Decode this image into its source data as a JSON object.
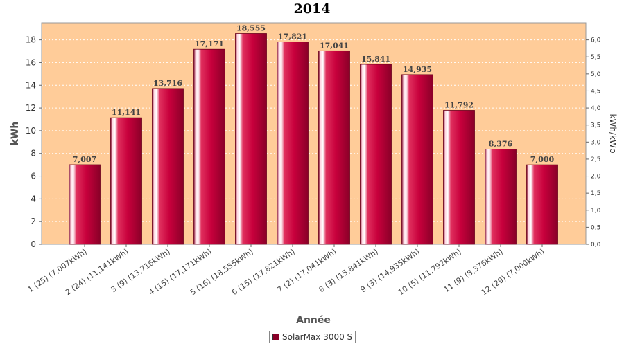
{
  "chart_data": {
    "type": "bar",
    "title": "2014",
    "xlabel": "Année",
    "ylabel": "kWh",
    "y2label": "kWh/kWp",
    "ylim": [
      0,
      19.5
    ],
    "y2lim": [
      0,
      6.5
    ],
    "yticks": [
      0,
      2,
      4,
      6,
      8,
      10,
      12,
      14,
      16,
      18
    ],
    "y2ticks": [
      "0,0",
      "0,5",
      "1,0",
      "1,5",
      "2,0",
      "2,5",
      "3,0",
      "3,5",
      "4,0",
      "4,5",
      "5,0",
      "5,5",
      "6,0"
    ],
    "grid": true,
    "legend_position": "bottom",
    "categories": [
      "1 (25)  (7,007kWh)",
      "2 (24)  (11,141kWh)",
      "3 (9)  (13,716kWh)",
      "4 (15)  (17,171kWh)",
      "5 (16)  (18,555kWh)",
      "6 (15)  (17,821kWh)",
      "7 (2)  (17,041kWh)",
      "8 (3)  (15,841kWh)",
      "9 (3)  (14,935kWh)",
      "10 (5)  (11,792kWh)",
      "11 (9)  (8,376kWh)",
      "12 (29)  (7,000kWh)"
    ],
    "series": [
      {
        "name": "SolarMax 3000 S",
        "values": [
          7.007,
          11.141,
          13.716,
          17.171,
          18.555,
          17.821,
          17.041,
          15.841,
          14.935,
          11.792,
          8.376,
          7.0
        ],
        "labels": [
          "7,007",
          "11,141",
          "13,716",
          "17,171",
          "18,555",
          "17,821",
          "17,041",
          "15,841",
          "14,935",
          "11,792",
          "8,376",
          "7,000"
        ]
      }
    ],
    "colors": {
      "plot_background": "#ffcc99",
      "bar": "#c8003c",
      "bar_dark": "#8a0028",
      "bar_highlight": "#ffe0e8"
    }
  }
}
